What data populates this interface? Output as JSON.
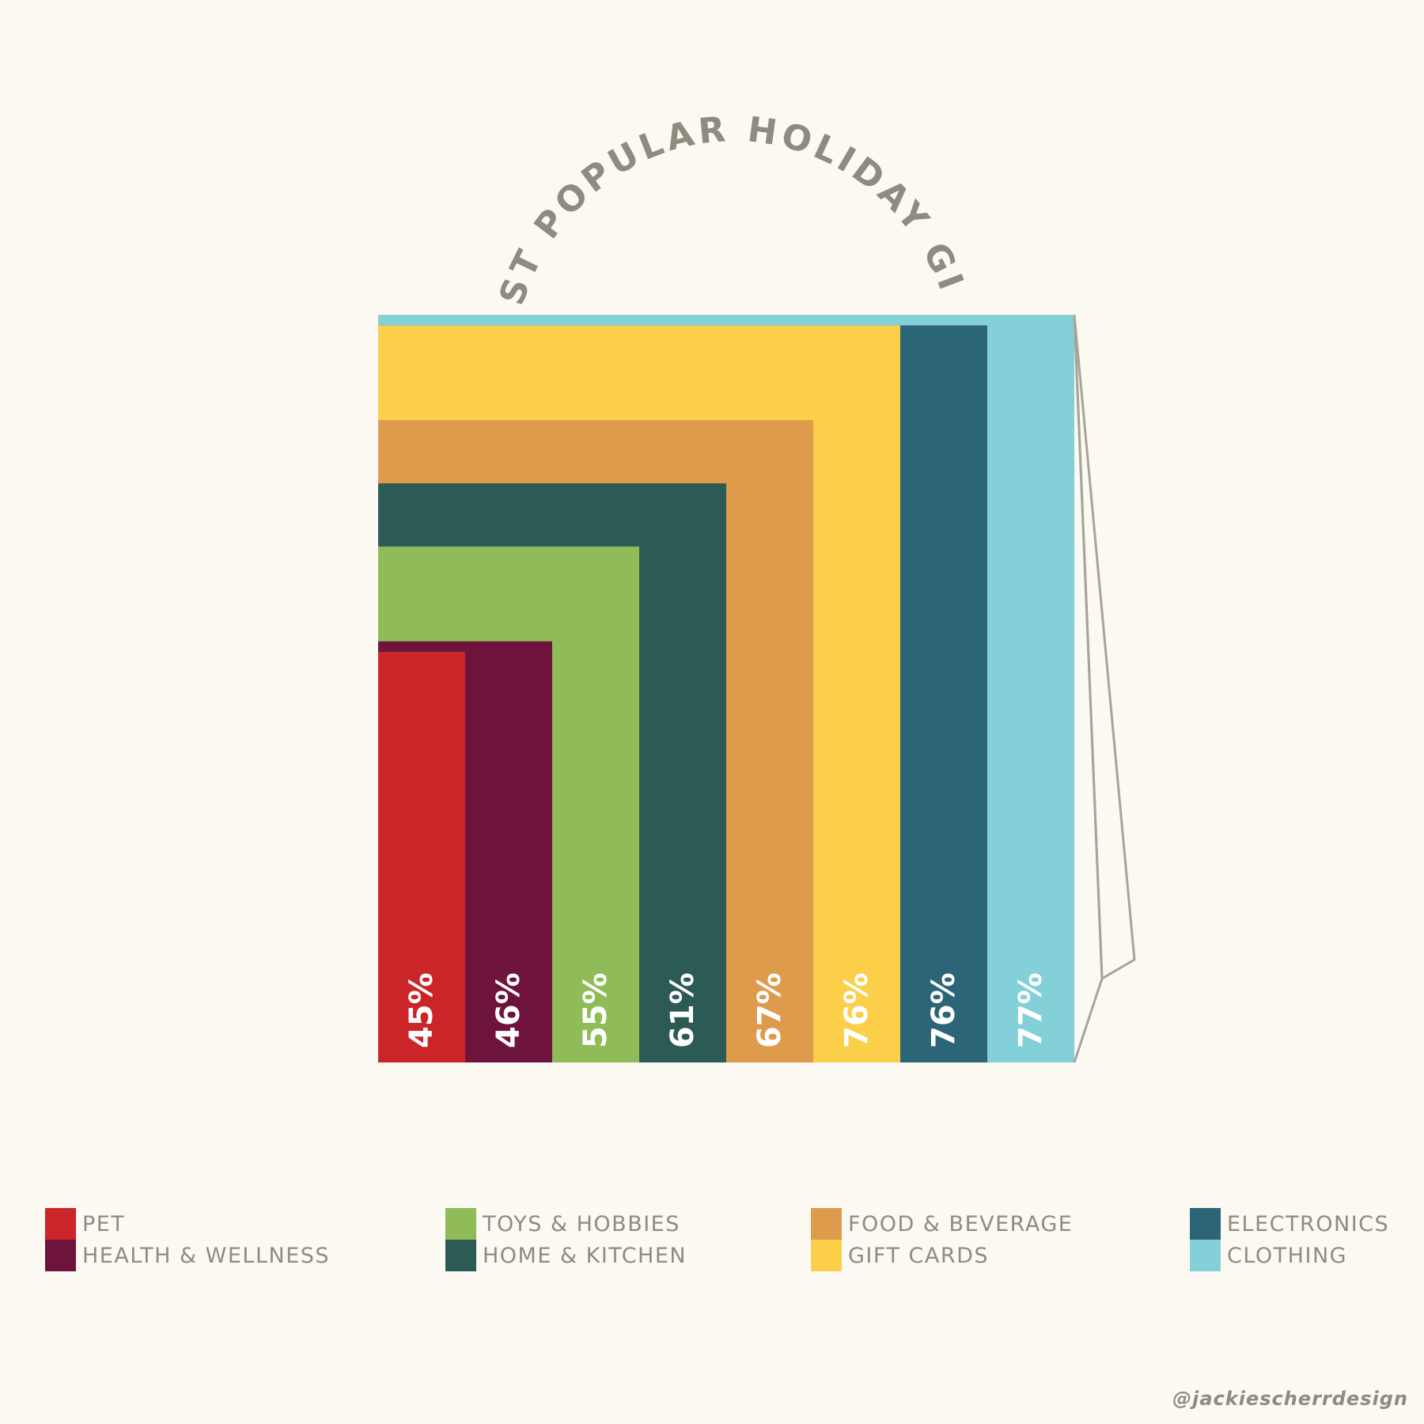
{
  "chart_data": {
    "type": "bar",
    "title": "MOST POPULAR HOLIDAY GIFTS",
    "unit": "%",
    "categories": [
      "PET",
      "HEALTH & WELLNESS",
      "TOYS & HOBBIES",
      "HOME & KITCHEN",
      "FOOD & BEVERAGE",
      "GIFT CARDS",
      "ELECTRONICS",
      "CLOTHING"
    ],
    "values": [
      45,
      46,
      55,
      61,
      67,
      76,
      76,
      77
    ],
    "value_labels": [
      "45%",
      "46%",
      "55%",
      "61%",
      "67%",
      "76%",
      "76%",
      "77%"
    ],
    "colors": [
      "#cc2529",
      "#6d133c",
      "#8fbc58",
      "#2c5b55",
      "#df9b4c",
      "#fccf4a",
      "#2b6577",
      "#83d0d8"
    ],
    "legend": [
      {
        "items": [
          {
            "label": "PET",
            "color": "#cc2529"
          },
          {
            "label": "HEALTH & WELLNESS",
            "color": "#6d133c"
          }
        ]
      },
      {
        "items": [
          {
            "label": "TOYS & HOBBIES",
            "color": "#8fbc58"
          },
          {
            "label": "HOME & KITCHEN",
            "color": "#2c5b55"
          }
        ]
      },
      {
        "items": [
          {
            "label": "FOOD & BEVERAGE",
            "color": "#df9b4c"
          },
          {
            "label": "GIFT CARDS",
            "color": "#fccf4a"
          }
        ]
      },
      {
        "items": [
          {
            "label": "ELECTRONICS",
            "color": "#2b6577"
          },
          {
            "label": "CLOTHING",
            "color": "#83d0d8"
          }
        ]
      }
    ]
  },
  "credit": "@jackiescherrdesign"
}
